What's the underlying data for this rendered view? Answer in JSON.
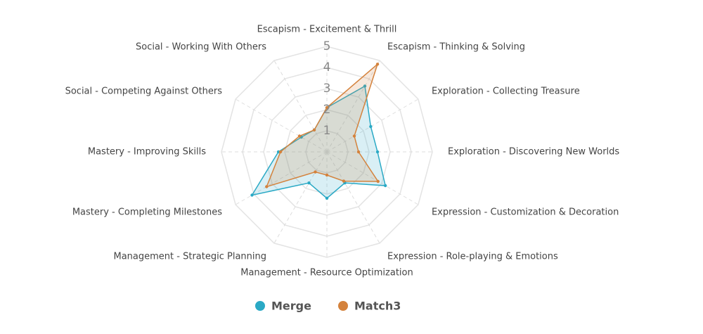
{
  "chart_data": {
    "type": "radar",
    "categories": [
      "Escapism - Excitement & Thrill",
      "Escapism - Thinking & Solving",
      "Exploration - Collecting Treasure",
      "Exploration - Discovering New Worlds",
      "Expression - Customization & Decoration",
      "Expression - Role-playing & Emotions",
      "Management - Resource Optimization",
      "Management - Strategic Planning",
      "Mastery - Completing Milestones",
      "Mastery - Improving Skills",
      "Social - Competing Against Others",
      "Social - Working With Others"
    ],
    "series": [
      {
        "name": "Merge",
        "color": "#2aa9c5",
        "values": [
          2.1,
          3.6,
          2.4,
          2.4,
          3.2,
          1.7,
          2.2,
          1.7,
          4.1,
          2.3,
          1.4,
          1.2
        ]
      },
      {
        "name": "Match3",
        "color": "#d4823c",
        "values": [
          2.1,
          4.8,
          1.5,
          1.5,
          2.8,
          1.6,
          1.1,
          1.1,
          3.3,
          2.2,
          1.5,
          1.2
        ]
      }
    ],
    "ylim": [
      0,
      5
    ],
    "yticks": [
      1,
      2,
      3,
      4,
      5
    ],
    "grid": true
  }
}
